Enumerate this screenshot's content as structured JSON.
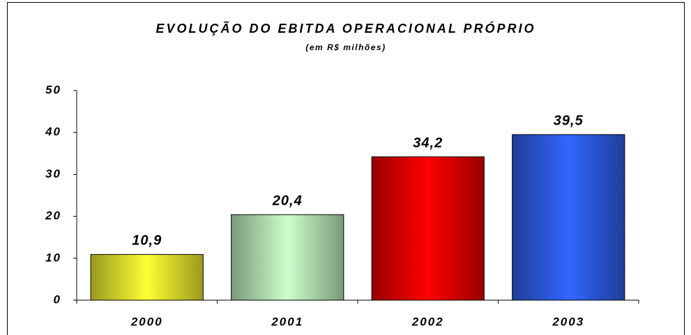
{
  "chart_data": {
    "type": "bar",
    "title": "EVOLUÇÃO DO EBITDA OPERACIONAL PRÓPRIO",
    "subtitle": "(em R$ milhões)",
    "categories": [
      "2000",
      "2001",
      "2002",
      "2003"
    ],
    "values": [
      10.9,
      20.4,
      34.2,
      39.5
    ],
    "value_labels": [
      "10,9",
      "20,4",
      "34,2",
      "39,5"
    ],
    "colors": [
      "#ffff33",
      "#ccffcc",
      "#ff0000",
      "#3366ff"
    ],
    "ylim": [
      0,
      50
    ],
    "yticks": [
      0,
      10,
      20,
      30,
      40,
      50
    ],
    "grid": false
  }
}
